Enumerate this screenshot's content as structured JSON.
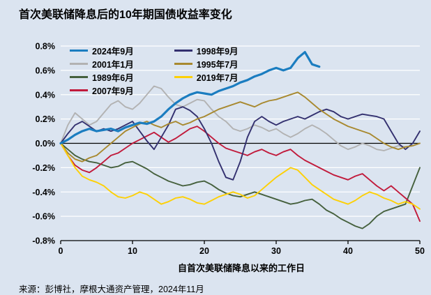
{
  "title": "首次美联储降息后的10年期国债收益率变化",
  "source": "来源：彭博社，摩根大通资产管理，2024年11月",
  "chart_data": {
    "type": "line",
    "title": "首次美联储降息后的10年期国债收益率变化",
    "xlabel": "自首次美联储降息以来的工作日",
    "ylabel": "",
    "xlim": [
      0,
      50
    ],
    "ylim": [
      -0.8,
      0.8
    ],
    "grid": "horizontal-white",
    "legend_position": "top-left",
    "background": "#dbe4f0",
    "x_ticks": [
      {
        "v": 0,
        "label": "0"
      },
      {
        "v": 10,
        "label": "10"
      },
      {
        "v": 20,
        "label": "20"
      },
      {
        "v": 30,
        "label": "30"
      },
      {
        "v": 40,
        "label": "40"
      },
      {
        "v": 50,
        "label": "50"
      }
    ],
    "y_ticks": [
      {
        "v": 0.8,
        "label": "0.8%"
      },
      {
        "v": 0.6,
        "label": "0.6%"
      },
      {
        "v": 0.4,
        "label": "0.4%"
      },
      {
        "v": 0.2,
        "label": "0.2%"
      },
      {
        "v": 0.0,
        "label": "0.0%"
      },
      {
        "v": -0.2,
        "label": "-0.2%"
      },
      {
        "v": -0.4,
        "label": "-0.4%"
      },
      {
        "v": -0.6,
        "label": "-0.6%"
      },
      {
        "v": -0.8,
        "label": "-0.8%"
      }
    ],
    "series": [
      {
        "name": "2024年9月",
        "color": "#1b7dc0",
        "line_width": 3.2,
        "emphasis": true,
        "values": [
          0.0,
          0.03,
          0.07,
          0.1,
          0.12,
          0.1,
          0.11,
          0.12,
          0.1,
          0.13,
          0.15,
          0.17,
          0.16,
          0.18,
          0.22,
          0.28,
          0.33,
          0.37,
          0.4,
          0.42,
          0.41,
          0.4,
          0.43,
          0.45,
          0.47,
          0.5,
          0.52,
          0.55,
          0.57,
          0.6,
          0.62,
          0.6,
          0.62,
          0.7,
          0.75,
          0.65,
          0.63
        ]
      },
      {
        "name": "2001年1月",
        "color": "#b2b2b2",
        "line_width": 1.9,
        "emphasis": false,
        "values": [
          0.0,
          0.15,
          0.25,
          0.2,
          0.15,
          0.18,
          0.25,
          0.32,
          0.35,
          0.3,
          0.28,
          0.33,
          0.4,
          0.47,
          0.45,
          0.38,
          0.32,
          0.3,
          0.33,
          0.36,
          0.35,
          0.28,
          0.22,
          0.18,
          0.12,
          0.1,
          0.12,
          0.15,
          0.13,
          0.1,
          0.12,
          0.08,
          0.05,
          0.08,
          0.12,
          0.15,
          0.12,
          0.08,
          0.03,
          -0.02,
          -0.05,
          -0.03,
          0.0,
          -0.02,
          -0.05,
          -0.06,
          -0.04,
          -0.02,
          -0.03,
          -0.02,
          0.0
        ]
      },
      {
        "name": "1989年6月",
        "color": "#45603d",
        "line_width": 1.9,
        "emphasis": false,
        "values": [
          0.0,
          -0.05,
          -0.1,
          -0.13,
          -0.15,
          -0.16,
          -0.18,
          -0.2,
          -0.19,
          -0.16,
          -0.15,
          -0.18,
          -0.21,
          -0.25,
          -0.28,
          -0.31,
          -0.33,
          -0.35,
          -0.34,
          -0.32,
          -0.31,
          -0.34,
          -0.38,
          -0.41,
          -0.43,
          -0.44,
          -0.42,
          -0.4,
          -0.42,
          -0.44,
          -0.46,
          -0.48,
          -0.5,
          -0.49,
          -0.47,
          -0.46,
          -0.5,
          -0.55,
          -0.58,
          -0.62,
          -0.65,
          -0.68,
          -0.7,
          -0.66,
          -0.6,
          -0.56,
          -0.54,
          -0.52,
          -0.5,
          -0.35,
          -0.2
        ]
      },
      {
        "name": "2007年9月",
        "color": "#c11a3b",
        "line_width": 1.9,
        "emphasis": false,
        "values": [
          0.0,
          -0.1,
          -0.18,
          -0.22,
          -0.24,
          -0.2,
          -0.15,
          -0.1,
          -0.08,
          -0.04,
          0.0,
          0.03,
          0.06,
          0.09,
          0.05,
          0.01,
          0.04,
          0.08,
          0.12,
          0.14,
          0.1,
          0.05,
          0.0,
          -0.04,
          -0.06,
          -0.08,
          -0.1,
          -0.07,
          -0.05,
          -0.08,
          -0.1,
          -0.07,
          -0.05,
          -0.1,
          -0.14,
          -0.17,
          -0.2,
          -0.23,
          -0.26,
          -0.28,
          -0.3,
          -0.27,
          -0.25,
          -0.3,
          -0.35,
          -0.39,
          -0.35,
          -0.4,
          -0.45,
          -0.5,
          -0.64
        ]
      },
      {
        "name": "1998年9月",
        "color": "#33306f",
        "line_width": 1.9,
        "emphasis": false,
        "values": [
          0.0,
          0.08,
          0.15,
          0.18,
          0.14,
          0.1,
          0.12,
          0.1,
          0.12,
          0.15,
          0.18,
          0.1,
          0.02,
          -0.05,
          0.05,
          0.15,
          0.28,
          0.3,
          0.27,
          0.22,
          0.12,
          0.0,
          -0.15,
          -0.28,
          -0.3,
          -0.15,
          0.05,
          0.18,
          0.22,
          0.18,
          0.15,
          0.18,
          0.2,
          0.22,
          0.2,
          0.23,
          0.26,
          0.28,
          0.26,
          0.22,
          0.2,
          0.22,
          0.24,
          0.23,
          0.22,
          0.2,
          0.1,
          0.0,
          -0.05,
          0.0,
          0.1
        ]
      },
      {
        "name": "1995年7月",
        "color": "#a8892f",
        "line_width": 1.9,
        "emphasis": false,
        "values": [
          0.0,
          -0.08,
          -0.13,
          -0.15,
          -0.12,
          -0.1,
          -0.05,
          0.0,
          0.05,
          0.1,
          0.13,
          0.16,
          0.18,
          0.15,
          0.13,
          0.16,
          0.18,
          0.15,
          0.17,
          0.2,
          0.22,
          0.25,
          0.28,
          0.3,
          0.32,
          0.34,
          0.32,
          0.3,
          0.33,
          0.35,
          0.36,
          0.38,
          0.4,
          0.42,
          0.38,
          0.33,
          0.28,
          0.24,
          0.2,
          0.17,
          0.14,
          0.12,
          0.1,
          0.08,
          0.04,
          0.0,
          -0.03,
          -0.05,
          -0.03,
          -0.02,
          0.0
        ]
      },
      {
        "name": "2019年7月",
        "color": "#fdd006",
        "line_width": 1.9,
        "emphasis": false,
        "values": [
          0.0,
          -0.1,
          -0.2,
          -0.27,
          -0.3,
          -0.32,
          -0.35,
          -0.4,
          -0.44,
          -0.45,
          -0.43,
          -0.4,
          -0.42,
          -0.46,
          -0.5,
          -0.48,
          -0.45,
          -0.44,
          -0.46,
          -0.49,
          -0.5,
          -0.47,
          -0.44,
          -0.42,
          -0.4,
          -0.42,
          -0.45,
          -0.43,
          -0.38,
          -0.33,
          -0.28,
          -0.24,
          -0.2,
          -0.22,
          -0.28,
          -0.34,
          -0.38,
          -0.42,
          -0.46,
          -0.48,
          -0.5,
          -0.47,
          -0.43,
          -0.4,
          -0.42,
          -0.45,
          -0.47,
          -0.5,
          -0.48,
          -0.5,
          -0.54
        ]
      }
    ]
  }
}
